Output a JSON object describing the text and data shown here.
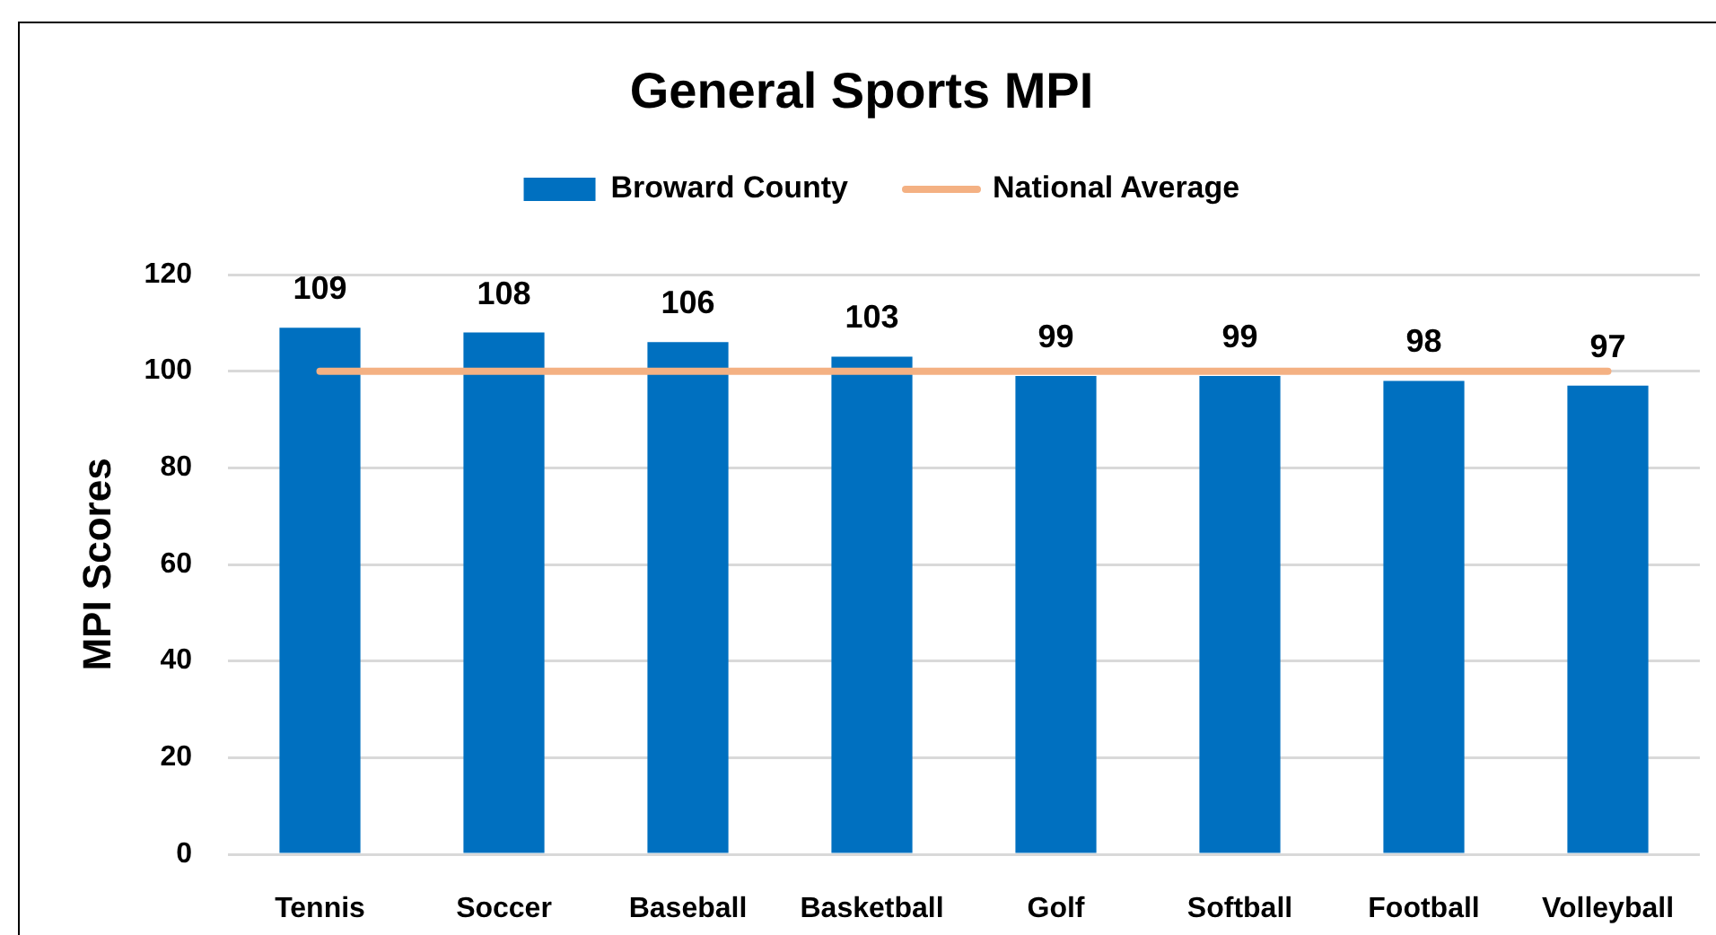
{
  "chart_data": {
    "type": "bar",
    "title": "General Sports MPI",
    "ylabel": "MPI Scores",
    "categories": [
      "Tennis",
      "Soccer",
      "Baseball",
      "Basketball",
      "Golf",
      "Softball",
      "Football",
      "Volleyball"
    ],
    "series": [
      {
        "name": "Broward County",
        "color": "#0070c0",
        "values": [
          109,
          108,
          106,
          103,
          99,
          99,
          98,
          97
        ],
        "value_labels": [
          "109",
          "108",
          "106",
          "103",
          "99",
          "99",
          "98",
          "97"
        ]
      },
      {
        "name": "National Average",
        "type": "line",
        "color": "#f4b183",
        "values": [
          100,
          100,
          100,
          100,
          100,
          100,
          100,
          100
        ]
      }
    ],
    "ylim": [
      0,
      120
    ],
    "yticks": [
      0,
      20,
      40,
      60,
      80,
      100,
      120
    ],
    "grid": "y",
    "legend": "top",
    "marker": "none",
    "line_style": "solid"
  }
}
